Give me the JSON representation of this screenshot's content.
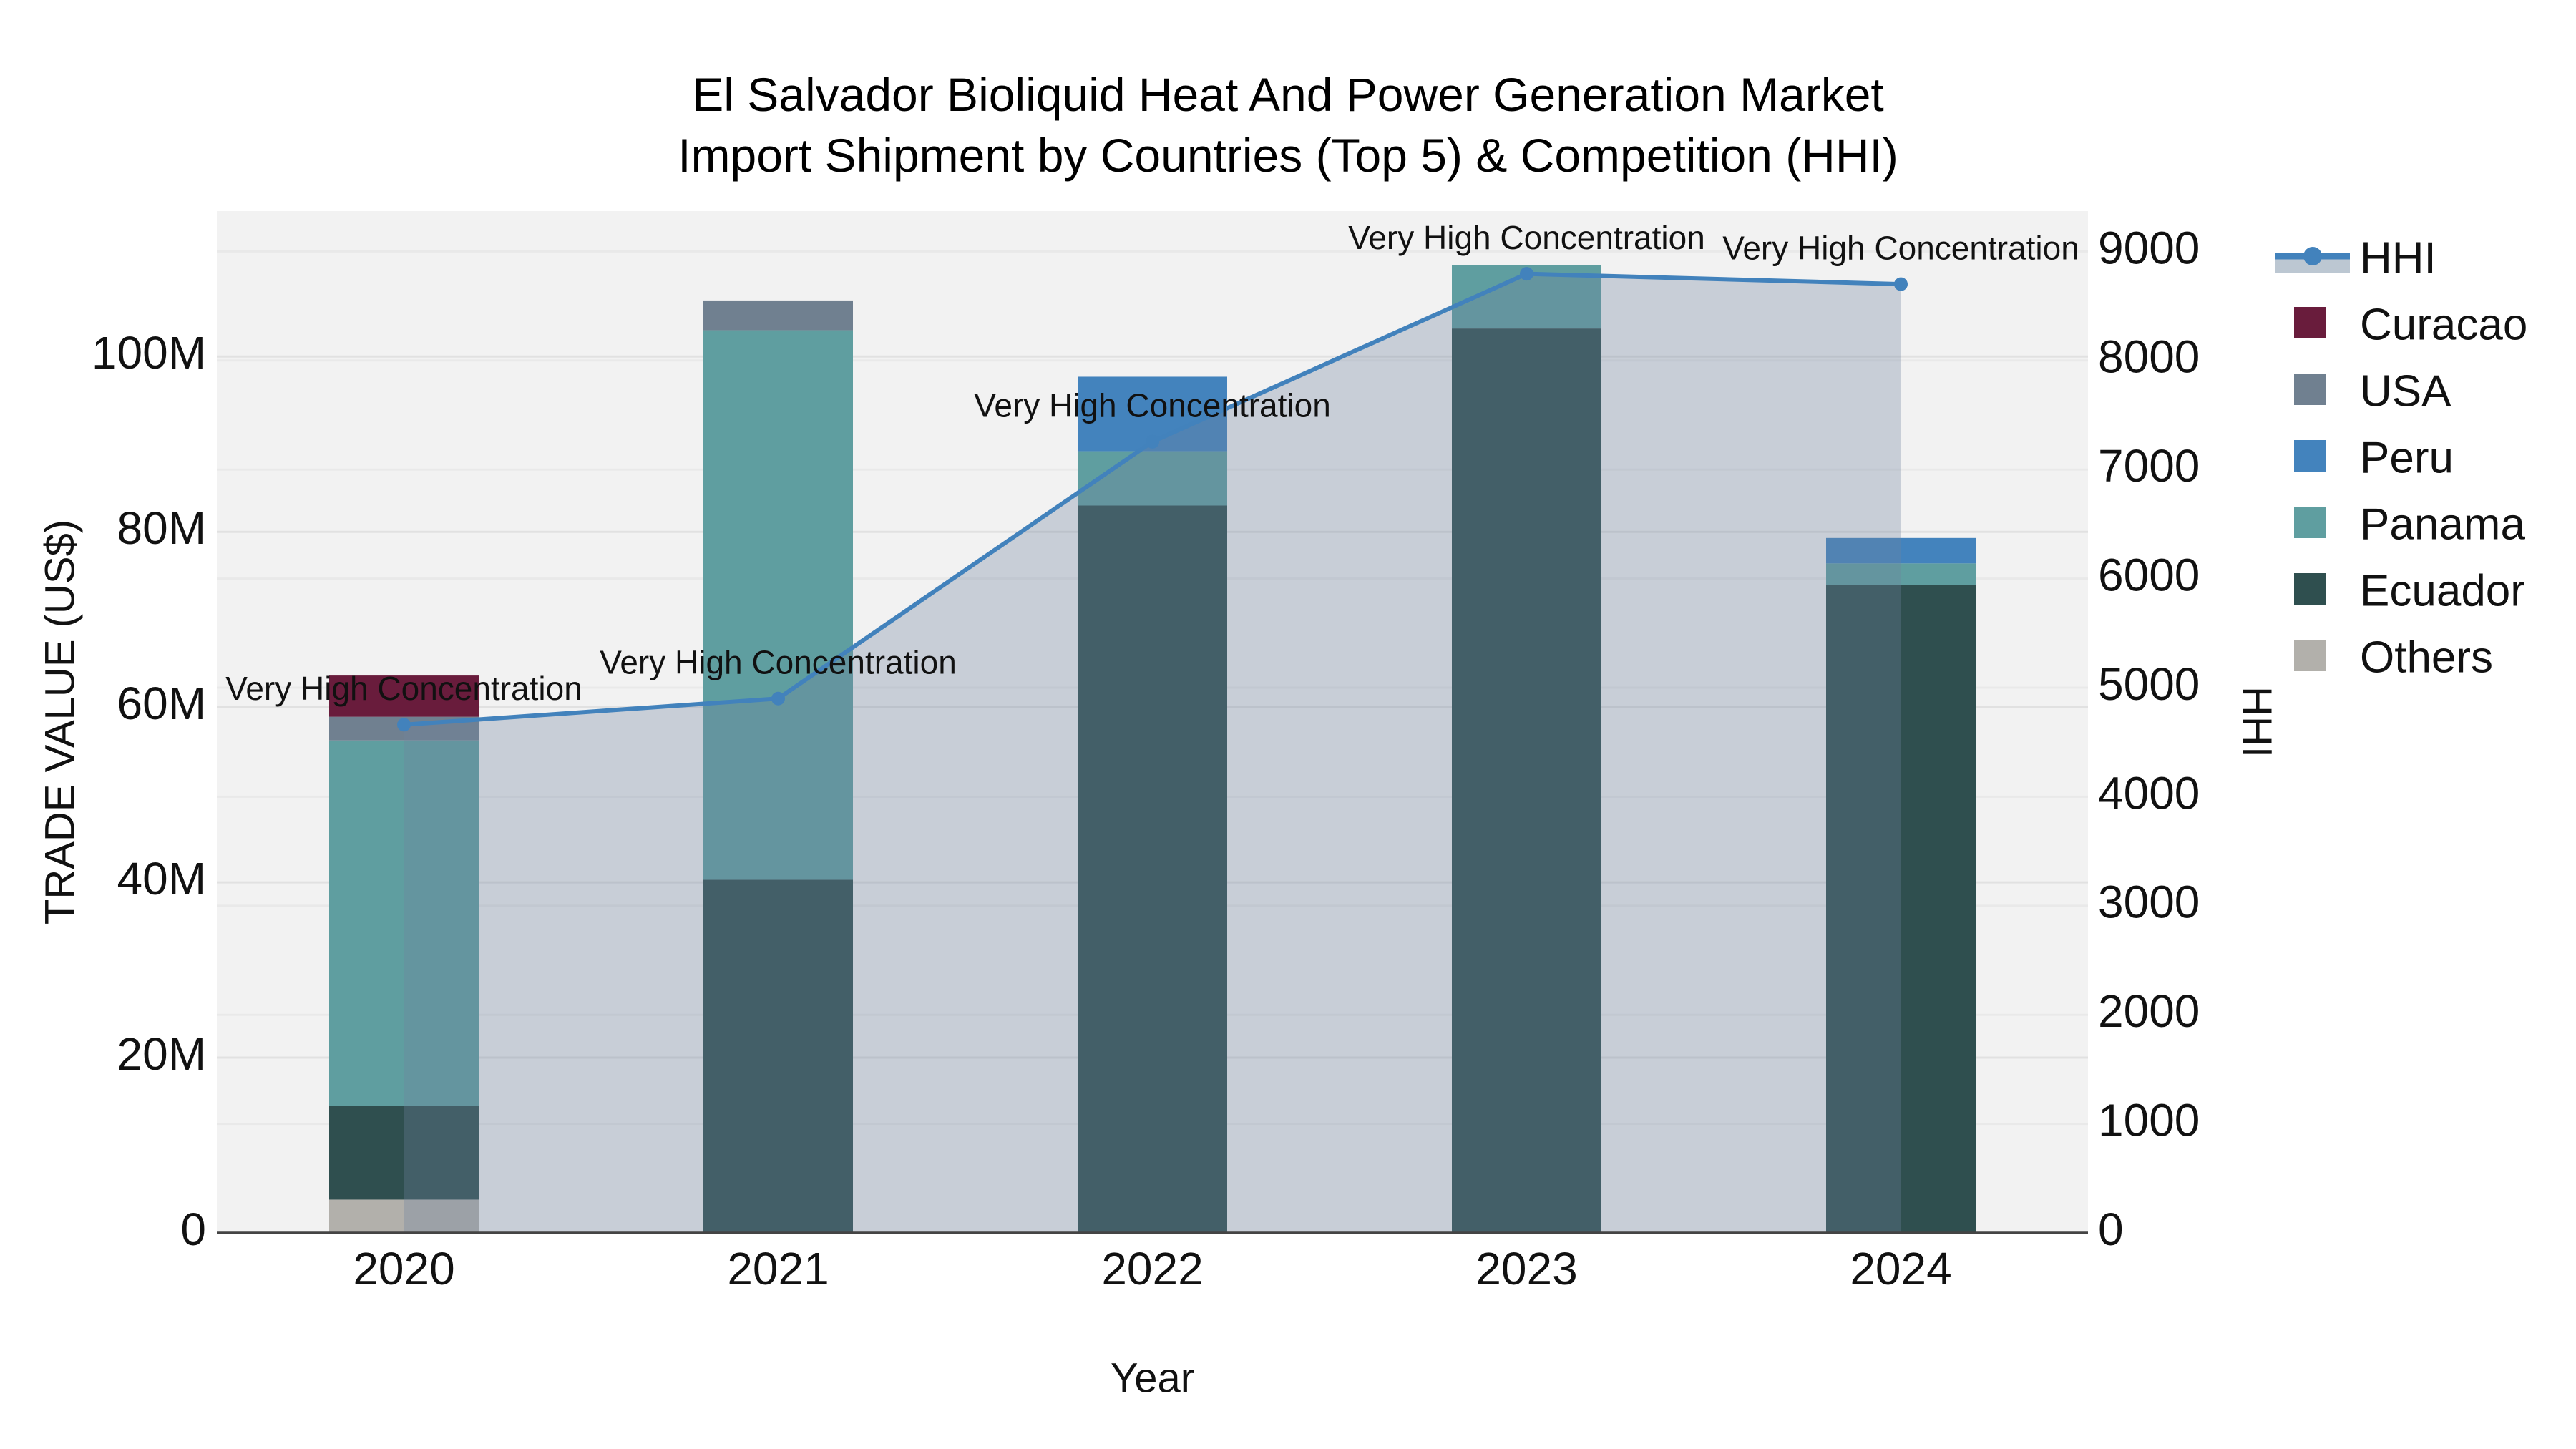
{
  "title": {
    "line1": "El Salvador Bioliquid Heat And Power Generation Market",
    "line2": "Import Shipment by Countries (Top 5) & Competition (HHI)"
  },
  "axes": {
    "x_title": "Year",
    "y_left_title": "TRADE VALUE (US$)",
    "y_right_title": "HHI",
    "y_left_tick_labels": [
      "0",
      "20M",
      "40M",
      "60M",
      "80M",
      "100M"
    ],
    "y_left_tick_values": [
      0,
      20,
      40,
      60,
      80,
      100
    ],
    "y_right_tick_labels": [
      "0",
      "1000",
      "2000",
      "3000",
      "4000",
      "5000",
      "6000",
      "7000",
      "8000",
      "9000"
    ],
    "y_right_tick_values": [
      0,
      1000,
      2000,
      3000,
      4000,
      5000,
      6000,
      7000,
      8000,
      9000
    ]
  },
  "legend": {
    "items": [
      {
        "label": "HHI",
        "type": "line",
        "color": "#4282bc",
        "band": "#bcc7d2"
      },
      {
        "label": "Curacao",
        "type": "swatch",
        "color": "#691c3c"
      },
      {
        "label": "USA",
        "type": "swatch",
        "color": "#708090"
      },
      {
        "label": "Peru",
        "type": "swatch",
        "color": "#4383bd"
      },
      {
        "label": "Panama",
        "type": "swatch",
        "color": "#5f9ea0"
      },
      {
        "label": "Ecuador",
        "type": "swatch",
        "color": "#2f4f4f"
      },
      {
        "label": "Others",
        "type": "swatch",
        "color": "#b2b0ab"
      }
    ]
  },
  "chart_data": {
    "type": "bar+line",
    "title": "El Salvador Bioliquid Heat And Power Generation Market — Import Shipment by Countries (Top 5) & Competition (HHI)",
    "categories": [
      "2020",
      "2021",
      "2022",
      "2023",
      "2024"
    ],
    "bar_unit": "Million US$",
    "bar_series": [
      {
        "name": "Others",
        "color": "#b2b0ab",
        "values": [
          3.8,
          0,
          0,
          0,
          0
        ]
      },
      {
        "name": "Ecuador",
        "color": "#2f4f4f",
        "values": [
          10.7,
          40.3,
          83.0,
          103.2,
          73.9
        ]
      },
      {
        "name": "Panama",
        "color": "#5f9ea0",
        "values": [
          41.7,
          62.7,
          6.2,
          7.2,
          2.5
        ]
      },
      {
        "name": "Peru",
        "color": "#4383bd",
        "values": [
          0,
          0,
          8.5,
          0,
          2.9
        ]
      },
      {
        "name": "USA",
        "color": "#708090",
        "values": [
          2.7,
          3.4,
          0,
          0,
          0
        ]
      },
      {
        "name": "Curacao",
        "color": "#691c3c",
        "values": [
          4.7,
          0,
          0,
          0,
          0
        ]
      }
    ],
    "bar_totals": [
      63.6,
      106.4,
      97.7,
      110.4,
      79.3
    ],
    "line_series": {
      "name": "HHI",
      "color": "#4282bc",
      "area_fill": "rgba(113,132,160,0.32)",
      "values": [
        4660,
        4900,
        7255,
        8795,
        8700
      ]
    },
    "annotations": [
      {
        "year": "2020",
        "text": "Very High Concentration"
      },
      {
        "year": "2021",
        "text": "Very High Concentration"
      },
      {
        "year": "2022",
        "text": "Very High Concentration"
      },
      {
        "year": "2023",
        "text": "Very High Concentration"
      },
      {
        "year": "2024",
        "text": "Very High Concentration"
      }
    ],
    "ylim_left": [
      0,
      116.6
    ],
    "ylim_right": [
      0,
      9370
    ],
    "grid": true,
    "legend_position": "right"
  }
}
